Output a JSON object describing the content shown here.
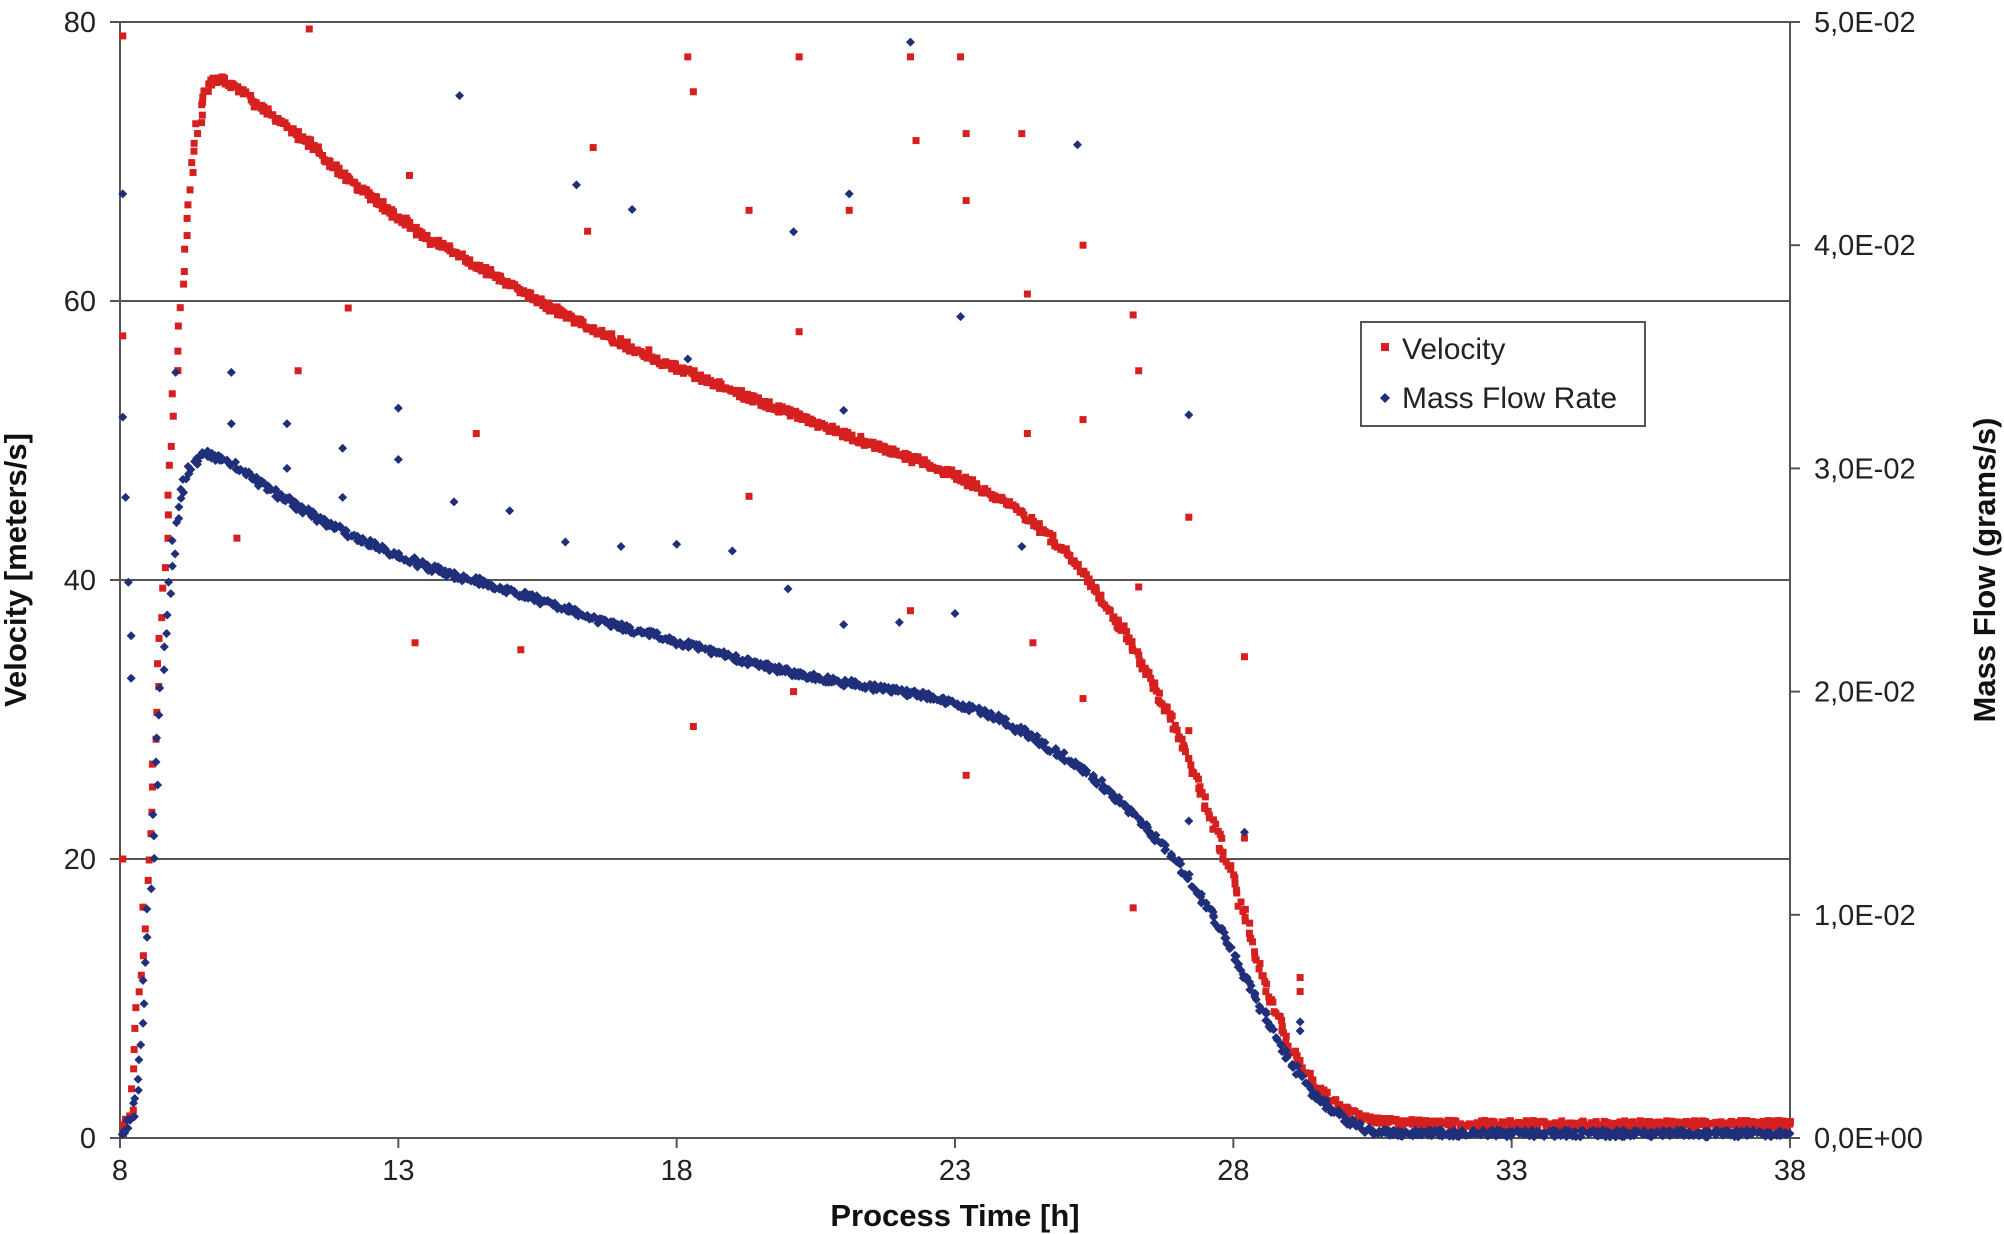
{
  "chart_data": {
    "type": "scatter",
    "xlabel": "Process Time [h]",
    "ylabel": "Velocity [meters/s]",
    "y2label": "Mass Flow (grams/s)",
    "xlim": [
      8,
      38
    ],
    "ylim": [
      0,
      80
    ],
    "y2lim": [
      0,
      0.05
    ],
    "x_ticks": [
      "8",
      "13",
      "18",
      "23",
      "28",
      "33",
      "38"
    ],
    "y_ticks": [
      "0",
      "20",
      "40",
      "60",
      "80"
    ],
    "y2_ticks": [
      "0,0E+00",
      "1,0E-02",
      "2,0E-02",
      "3,0E-02",
      "4,0E-02",
      "5,0E-02"
    ],
    "grid": "horizontal",
    "legend_position": "upper-right",
    "colors": {
      "velocity": "#d62020",
      "mass_flow": "#1f2f7a"
    },
    "series": [
      {
        "name": "Velocity",
        "axis": "left",
        "marker": "square",
        "color": "#d62020",
        "points": [
          [
            8.05,
            0.5
          ],
          [
            8.2,
            2
          ],
          [
            8.3,
            8
          ],
          [
            8.4,
            13
          ],
          [
            8.5,
            20
          ],
          [
            8.6,
            27
          ],
          [
            8.7,
            34
          ],
          [
            8.8,
            41
          ],
          [
            8.9,
            48
          ],
          [
            9.0,
            55
          ],
          [
            9.1,
            61
          ],
          [
            9.2,
            66
          ],
          [
            9.3,
            70
          ],
          [
            9.4,
            72.5
          ],
          [
            9.5,
            74.5
          ],
          [
            9.6,
            75.5
          ],
          [
            9.8,
            76
          ],
          [
            10.0,
            75.5
          ],
          [
            10.5,
            74
          ],
          [
            11.0,
            72.5
          ],
          [
            11.5,
            71
          ],
          [
            12.0,
            69
          ],
          [
            12.5,
            67.5
          ],
          [
            13.0,
            66
          ],
          [
            13.5,
            64.5
          ],
          [
            14.0,
            63.5
          ],
          [
            14.5,
            62.3
          ],
          [
            15.0,
            61.2
          ],
          [
            15.5,
            60
          ],
          [
            16.0,
            59
          ],
          [
            16.5,
            58
          ],
          [
            17.0,
            57
          ],
          [
            17.5,
            56
          ],
          [
            18.0,
            55.2
          ],
          [
            18.5,
            54.4
          ],
          [
            19.0,
            53.5
          ],
          [
            19.5,
            52.8
          ],
          [
            20.0,
            52
          ],
          [
            20.5,
            51.2
          ],
          [
            21.0,
            50.5
          ],
          [
            21.5,
            49.7
          ],
          [
            22.0,
            49
          ],
          [
            22.5,
            48.3
          ],
          [
            23.0,
            47.5
          ],
          [
            23.5,
            46.5
          ],
          [
            24.0,
            45.3
          ],
          [
            24.5,
            43.8
          ],
          [
            25.0,
            42
          ],
          [
            25.5,
            39.5
          ],
          [
            26.0,
            36.5
          ],
          [
            26.5,
            33
          ],
          [
            27.0,
            29
          ],
          [
            27.5,
            24
          ],
          [
            28.0,
            18.5
          ],
          [
            28.3,
            14.5
          ],
          [
            28.6,
            10.5
          ],
          [
            29.0,
            6.5
          ],
          [
            29.5,
            3.5
          ],
          [
            30.0,
            2
          ],
          [
            30.5,
            1.3
          ],
          [
            31.0,
            1.1
          ],
          [
            32.0,
            1.0
          ],
          [
            33.0,
            1.0
          ],
          [
            34.0,
            1.0
          ],
          [
            35.0,
            1.0
          ],
          [
            36.0,
            1.0
          ],
          [
            37.0,
            1.0
          ],
          [
            38.0,
            1.0
          ]
        ],
        "outliers": [
          [
            8.05,
            79
          ],
          [
            8.05,
            57.5
          ],
          [
            8.05,
            20
          ],
          [
            10.1,
            43
          ],
          [
            11.2,
            55
          ],
          [
            11.4,
            79.5
          ],
          [
            12.1,
            59.5
          ],
          [
            13.2,
            69
          ],
          [
            13.3,
            35.5
          ],
          [
            14.4,
            50.5
          ],
          [
            15.2,
            35
          ],
          [
            16.5,
            71
          ],
          [
            16.4,
            65
          ],
          [
            17.5,
            56.5
          ],
          [
            18.2,
            77.5
          ],
          [
            18.3,
            75
          ],
          [
            18.3,
            29.5
          ],
          [
            19.3,
            66.5
          ],
          [
            19.3,
            46
          ],
          [
            20.2,
            77.5
          ],
          [
            20.2,
            57.8
          ],
          [
            20.1,
            32
          ],
          [
            21.1,
            66.5
          ],
          [
            22.2,
            77.5
          ],
          [
            22.3,
            71.5
          ],
          [
            22.2,
            37.8
          ],
          [
            23.2,
            72
          ],
          [
            23.2,
            67.2
          ],
          [
            23.1,
            77.5
          ],
          [
            23.2,
            26
          ],
          [
            24.2,
            72
          ],
          [
            24.3,
            60.5
          ],
          [
            24.3,
            50.5
          ],
          [
            24.4,
            35.5
          ],
          [
            25.3,
            64
          ],
          [
            25.3,
            51.5
          ],
          [
            25.3,
            31.5
          ],
          [
            26.2,
            59
          ],
          [
            26.3,
            55
          ],
          [
            26.3,
            39.5
          ],
          [
            26.2,
            16.5
          ],
          [
            27.2,
            44.5
          ],
          [
            27.2,
            29.2
          ],
          [
            28.2,
            34.5
          ],
          [
            28.2,
            21.5
          ],
          [
            29.2,
            11.5
          ],
          [
            29.2,
            10.5
          ]
        ]
      },
      {
        "name": "Mass Flow Rate",
        "axis": "right",
        "marker": "diamond",
        "color": "#1f2f7a",
        "points": [
          [
            8.05,
            0.0003
          ],
          [
            8.2,
            0.0008
          ],
          [
            8.3,
            0.002
          ],
          [
            8.4,
            0.005
          ],
          [
            8.5,
            0.009
          ],
          [
            8.6,
            0.0135
          ],
          [
            8.7,
            0.018
          ],
          [
            8.8,
            0.022
          ],
          [
            8.9,
            0.025
          ],
          [
            9.0,
            0.0275
          ],
          [
            9.1,
            0.029
          ],
          [
            9.2,
            0.0298
          ],
          [
            9.4,
            0.0305
          ],
          [
            9.6,
            0.0307
          ],
          [
            10.0,
            0.0302
          ],
          [
            10.5,
            0.0294
          ],
          [
            11.0,
            0.0286
          ],
          [
            11.5,
            0.0278
          ],
          [
            12.0,
            0.0272
          ],
          [
            12.5,
            0.0266
          ],
          [
            13.0,
            0.0261
          ],
          [
            13.5,
            0.0256
          ],
          [
            14.0,
            0.0252
          ],
          [
            14.5,
            0.0249
          ],
          [
            15.0,
            0.0245
          ],
          [
            15.5,
            0.0241
          ],
          [
            16.0,
            0.0237
          ],
          [
            16.5,
            0.0233
          ],
          [
            17.0,
            0.0229
          ],
          [
            17.5,
            0.0226
          ],
          [
            18.0,
            0.0222
          ],
          [
            18.5,
            0.0219
          ],
          [
            19.0,
            0.0215
          ],
          [
            19.5,
            0.0212
          ],
          [
            20.0,
            0.0209
          ],
          [
            20.5,
            0.0206
          ],
          [
            21.0,
            0.0204
          ],
          [
            21.5,
            0.0202
          ],
          [
            22.0,
            0.02
          ],
          [
            22.5,
            0.0198
          ],
          [
            23.0,
            0.0195
          ],
          [
            23.5,
            0.0191
          ],
          [
            24.0,
            0.0185
          ],
          [
            24.5,
            0.0178
          ],
          [
            25.0,
            0.017
          ],
          [
            25.5,
            0.0161
          ],
          [
            26.0,
            0.015
          ],
          [
            26.5,
            0.0138
          ],
          [
            27.0,
            0.0123
          ],
          [
            27.5,
            0.0105
          ],
          [
            28.0,
            0.0083
          ],
          [
            28.5,
            0.0058
          ],
          [
            29.0,
            0.0035
          ],
          [
            29.5,
            0.0018
          ],
          [
            30.0,
            0.0008
          ],
          [
            30.5,
            0.0003
          ],
          [
            31.0,
            0.0002
          ],
          [
            32.0,
            0.0002
          ],
          [
            33.0,
            0.0002
          ],
          [
            34.0,
            0.0002
          ],
          [
            35.0,
            0.0002
          ],
          [
            36.0,
            0.0002
          ],
          [
            37.0,
            0.0002
          ],
          [
            38.0,
            0.0002
          ]
        ],
        "outliers": [
          [
            8.05,
            0.0423
          ],
          [
            8.05,
            0.0323
          ],
          [
            8.1,
            0.0287
          ],
          [
            8.15,
            0.0249
          ],
          [
            8.2,
            0.0225
          ],
          [
            8.2,
            0.0206
          ],
          [
            9.0,
            0.0343
          ],
          [
            10.0,
            0.0343
          ],
          [
            10.0,
            0.032
          ],
          [
            11.0,
            0.032
          ],
          [
            11.0,
            0.03
          ],
          [
            12.0,
            0.0309
          ],
          [
            12.0,
            0.0287
          ],
          [
            13.0,
            0.0327
          ],
          [
            13.0,
            0.0304
          ],
          [
            14.1,
            0.0467
          ],
          [
            14.0,
            0.0285
          ],
          [
            15.0,
            0.0281
          ],
          [
            16.2,
            0.0427
          ],
          [
            16.0,
            0.0267
          ],
          [
            17.2,
            0.0416
          ],
          [
            17.0,
            0.0265
          ],
          [
            18.2,
            0.0349
          ],
          [
            18.0,
            0.0266
          ],
          [
            19.0,
            0.0263
          ],
          [
            20.1,
            0.0406
          ],
          [
            20.0,
            0.0246
          ],
          [
            21.1,
            0.0423
          ],
          [
            21.0,
            0.0326
          ],
          [
            21.0,
            0.023
          ],
          [
            22.2,
            0.0491
          ],
          [
            22.0,
            0.0231
          ],
          [
            23.1,
            0.0368
          ],
          [
            23.0,
            0.0235
          ],
          [
            24.2,
            0.0265
          ],
          [
            25.2,
            0.0445
          ],
          [
            27.2,
            0.0324
          ],
          [
            27.2,
            0.0142
          ],
          [
            28.2,
            0.0137
          ],
          [
            29.2,
            0.0052
          ],
          [
            29.2,
            0.0048
          ]
        ]
      }
    ]
  }
}
